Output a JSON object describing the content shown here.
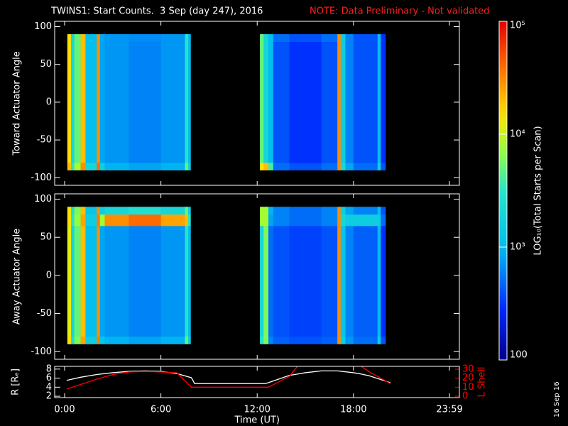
{
  "footer": "16 Sep 16",
  "chart_data": [
    {
      "type": "heatmap",
      "title": "TWINS1: Start Counts.  3 Sep (day 247), 2016",
      "subtitle": "NOTE: Data Preliminary - Not validated",
      "ylabel": "Toward Actuator Angle",
      "xlim": [
        -0.62,
        24.6
      ],
      "ylim": [
        -110,
        107
      ],
      "yticks": [
        -100,
        -50,
        0,
        50,
        100
      ],
      "y_edges": [
        -90,
        -80,
        65,
        80,
        90
      ],
      "blocks": [
        {
          "x_edges": [
            0.17,
            0.4,
            0.6,
            1.0,
            1.3,
            2.0,
            2.2,
            2.5,
            4.0,
            6.0,
            7.5,
            7.7,
            7.85
          ],
          "values": [
            [
              20000,
              15000,
              15000,
              15000
            ],
            [
              3000,
              2000,
              2000,
              2000
            ],
            [
              8000,
              5000,
              5000,
              5000
            ],
            [
              30000,
              20000,
              20000,
              20000
            ],
            [
              2000,
              1000,
              1000,
              1000
            ],
            [
              40000,
              30000,
              30000,
              30000
            ],
            [
              1500,
              800,
              800,
              800
            ],
            [
              900,
              700,
              700,
              700
            ],
            [
              800,
              600,
              600,
              650
            ],
            [
              900,
              700,
              700,
              700
            ],
            [
              5000,
              3000,
              3000,
              3000
            ],
            [
              1500,
              1000,
              1000,
              1000
            ]
          ]
        },
        {
          "x_edges": [
            12.17,
            12.4,
            12.7,
            13.0,
            14.0,
            16.0,
            17.0,
            17.2,
            17.5,
            18.0,
            19.5,
            19.7,
            20.0
          ],
          "values": [
            [
              15000,
              5000,
              5000,
              5000
            ],
            [
              20000,
              2000,
              2000,
              2000
            ],
            [
              4000,
              1000,
              1000,
              1000
            ],
            [
              500,
              400,
              400,
              500
            ],
            [
              400,
              300,
              300,
              400
            ],
            [
              500,
              400,
              400,
              500
            ],
            [
              30000,
              30000,
              30000,
              30000
            ],
            [
              2000,
              1500,
              1500,
              1500
            ],
            [
              800,
              600,
              600,
              600
            ],
            [
              500,
              400,
              400,
              400
            ],
            [
              1500,
              1000,
              1000,
              1000
            ],
            [
              400,
              300,
              300,
              300
            ]
          ]
        }
      ],
      "colorbar": {
        "label": "LOG₁₀(Total Starts per Scan)",
        "log": true,
        "lim": [
          100,
          100000
        ],
        "ticks": [
          {
            "value": 100000,
            "label": "10⁵"
          },
          {
            "value": 10000,
            "label": "10⁴"
          },
          {
            "value": 1000,
            "label": "10³"
          },
          100
        ]
      }
    },
    {
      "type": "heatmap",
      "ylabel": "Away Actuator Angle",
      "xlim": [
        -0.62,
        24.6
      ],
      "ylim": [
        -110,
        107
      ],
      "yticks": [
        -100,
        -50,
        0,
        50,
        100
      ],
      "y_edges": [
        -90,
        -80,
        65,
        80,
        90
      ],
      "blocks": [
        {
          "x_edges": [
            0.17,
            0.4,
            0.6,
            1.0,
            1.3,
            2.0,
            2.2,
            2.5,
            4.0,
            6.0,
            7.5,
            7.7,
            7.85
          ],
          "values": [
            [
              15000,
              12000,
              15000,
              15000
            ],
            [
              2500,
              2000,
              3000,
              2500
            ],
            [
              6000,
              5000,
              7000,
              6000
            ],
            [
              25000,
              20000,
              25000,
              20000
            ],
            [
              1500,
              1000,
              1500,
              1200
            ],
            [
              35000,
              30000,
              35000,
              30000
            ],
            [
              1200,
              800,
              8000,
              1500
            ],
            [
              900,
              700,
              30000,
              2000
            ],
            [
              800,
              600,
              40000,
              2500
            ],
            [
              900,
              700,
              25000,
              2000
            ],
            [
              5000,
              3000,
              20000,
              5000
            ],
            [
              1500,
              1000,
              3000,
              1500
            ]
          ]
        },
        {
          "x_edges": [
            12.17,
            12.4,
            12.7,
            13.0,
            14.0,
            16.0,
            17.0,
            17.2,
            17.5,
            18.0,
            19.5,
            19.7,
            20.0
          ],
          "values": [
            [
              3000,
              2000,
              8000,
              8000
            ],
            [
              6000,
              6000,
              8000,
              8000
            ],
            [
              600,
              500,
              800,
              900
            ],
            [
              450,
              400,
              600,
              600
            ],
            [
              400,
              350,
              500,
              500
            ],
            [
              450,
              400,
              600,
              600
            ],
            [
              30000,
              30000,
              30000,
              30000
            ],
            [
              1500,
              1200,
              2000,
              1500
            ],
            [
              700,
              600,
              1500,
              800
            ],
            [
              500,
              450,
              1500,
              600
            ],
            [
              1500,
              1000,
              1500,
              1000
            ],
            [
              400,
              300,
              500,
              400
            ]
          ]
        }
      ]
    },
    {
      "type": "line",
      "xlabel": "Time (UT)",
      "ylabel": "R [Rₑ]",
      "y2label": "L Shell",
      "xlim": [
        -0.62,
        24.6
      ],
      "xticks": [
        {
          "value": 0,
          "label": "0:00"
        },
        {
          "value": 6,
          "label": "6:00"
        },
        {
          "value": 12,
          "label": "12:00"
        },
        {
          "value": 18,
          "label": "18:00"
        },
        {
          "value": 23.983,
          "label": "23:59"
        }
      ],
      "ylim": [
        1.7,
        8.6
      ],
      "yticks": [
        2,
        4,
        6,
        8
      ],
      "y2lim": [
        -1.6,
        33.2
      ],
      "y2ticks": [
        0,
        10,
        20,
        30
      ],
      "y2color": "#ff0000",
      "x": [
        0.13,
        1,
        2,
        3,
        4,
        5,
        6,
        7,
        7.9,
        8.1,
        12.5,
        12.7,
        14,
        14.5,
        15,
        16,
        17,
        18,
        18.5,
        19,
        20.3
      ],
      "series": [
        {
          "name": "R",
          "color": "#ffffff",
          "values": [
            5.5,
            6.2,
            6.8,
            7.2,
            7.5,
            7.6,
            7.5,
            7.0,
            6.1,
            4.8,
            4.8,
            5.0,
            6.6,
            6.9,
            7.2,
            7.6,
            7.6,
            7.2,
            6.9,
            6.5,
            5.0
          ]
        },
        {
          "name": "L Shell",
          "color": "#ff0000",
          "axis": "y2",
          "values": [
            8,
            13,
            19,
            24,
            27,
            27.5,
            27,
            26,
            10,
            10,
            10,
            10,
            22,
            33,
            null,
            null,
            null,
            null,
            33,
            27,
            14
          ]
        }
      ]
    }
  ]
}
